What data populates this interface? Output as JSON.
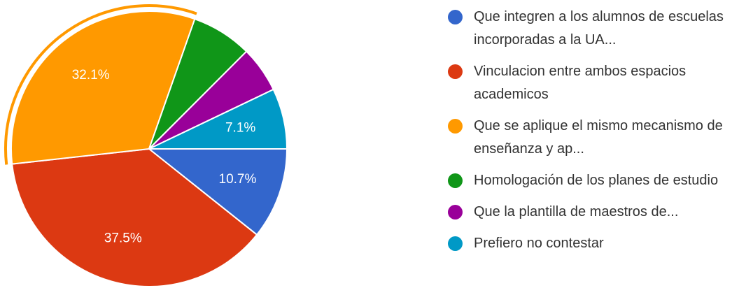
{
  "chart_data": {
    "type": "pie",
    "categories": [
      "Que integren a los alumnos de escuelas incorporadas a la UA...",
      "Vinculacion entre ambos espacios academicos",
      "Que se aplique el mismo mecanismo de enseñanza y ap...",
      "Homologación de los planes de estudio",
      "Que la plantilla de maestros de...",
      "Prefiero no contestar"
    ],
    "values": [
      10.7,
      37.5,
      32.1,
      7.1,
      5.4,
      7.1
    ],
    "value_labels": [
      "10.7%",
      "37.5%",
      "32.1%",
      null,
      null,
      "7.1%"
    ],
    "colors": [
      "#3366cc",
      "#dc3912",
      "#ff9900",
      "#109618",
      "#990099",
      "#0099c6"
    ],
    "highlighted": 2
  }
}
